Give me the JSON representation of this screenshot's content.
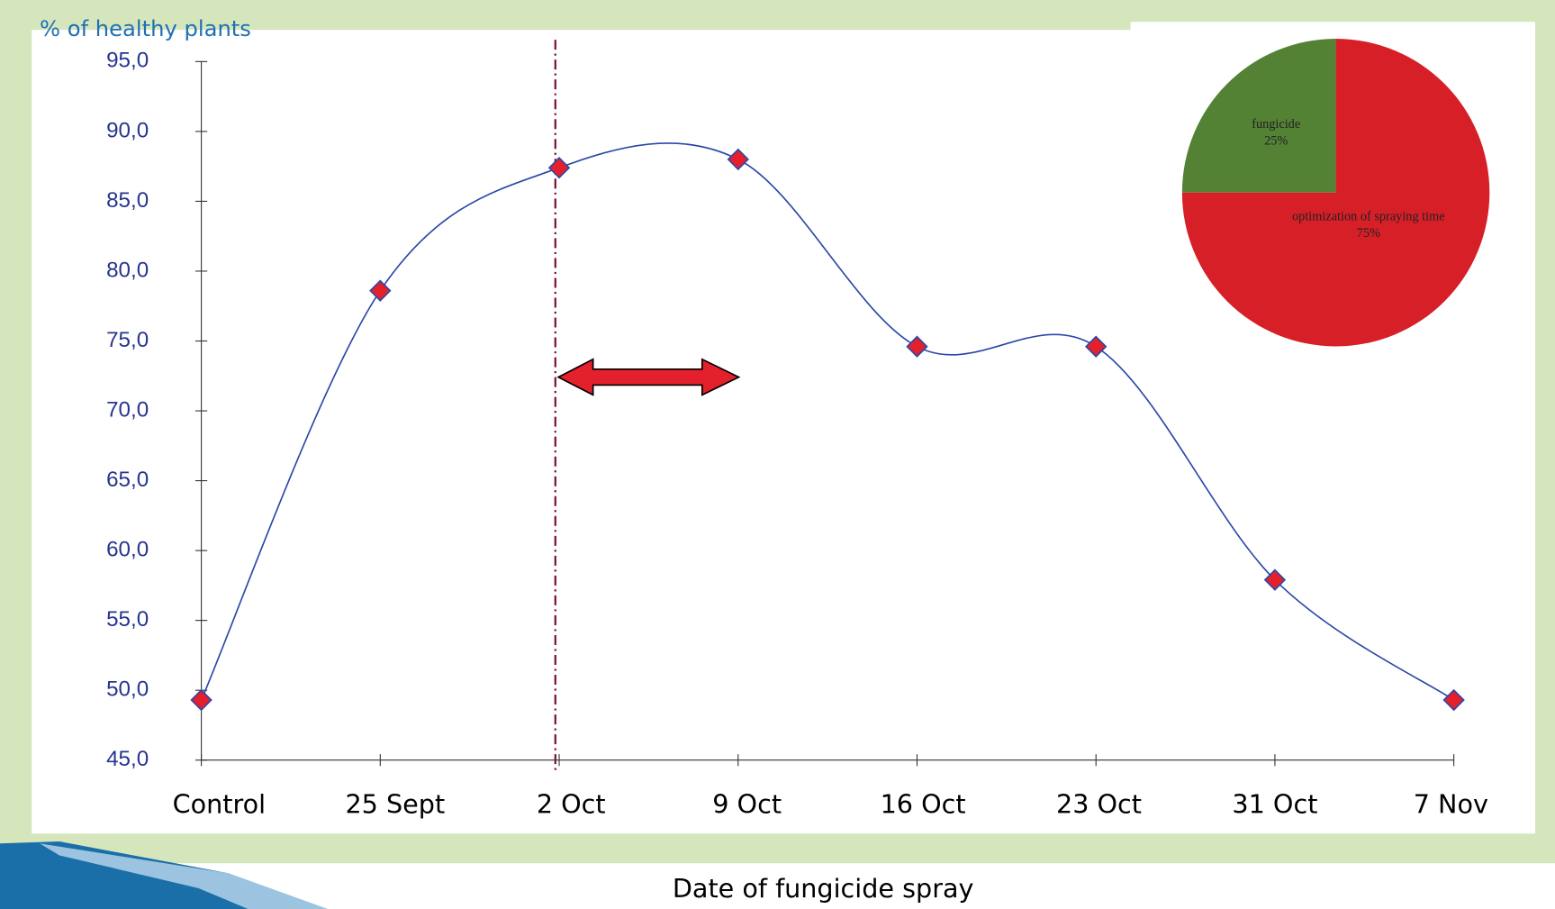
{
  "chart_data": [
    {
      "type": "line",
      "y_label": "% of healthy plants",
      "x_label": "Date of fungicide spray",
      "categories": [
        "Control",
        "25 Sept",
        "2 Oct",
        "9 Oct",
        "16 Oct",
        "23 Oct",
        "31 Oct",
        "7 Nov"
      ],
      "values": [
        49.3,
        78.6,
        87.4,
        88.0,
        74.6,
        74.6,
        57.9,
        49.3
      ],
      "color": "#2b48a6",
      "marker_color": "#e3202b",
      "ylim": [
        45,
        95
      ],
      "yticks": [
        {
          "value": 45,
          "label": "45,0"
        },
        {
          "value": 50,
          "label": "50,0"
        },
        {
          "value": 55,
          "label": "55,0"
        },
        {
          "value": 60,
          "label": "60,0"
        },
        {
          "value": 65,
          "label": "65,0"
        },
        {
          "value": 70,
          "label": "70,0"
        },
        {
          "value": 75,
          "label": "75,0"
        },
        {
          "value": 80,
          "label": "80,0"
        },
        {
          "value": 85,
          "label": "85,0"
        },
        {
          "value": 90,
          "label": "90,0"
        },
        {
          "value": 95,
          "label": "95,0"
        }
      ]
    },
    {
      "type": "pie",
      "categories": [
        "fungicide",
        "optimization of spraying time"
      ],
      "values": [
        25,
        75
      ],
      "value_labels": [
        "25%",
        "75%"
      ],
      "colors": [
        "#548235",
        "#d71f28"
      ]
    }
  ]
}
